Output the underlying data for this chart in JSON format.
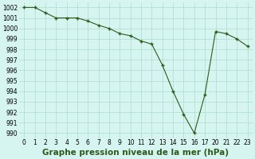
{
  "x_values": [
    0,
    1,
    2,
    3,
    4,
    5,
    6,
    7,
    8,
    9,
    10,
    11,
    12,
    13,
    14,
    15,
    16,
    17,
    20,
    21,
    22,
    23
  ],
  "y": [
    1002,
    1002,
    1001.5,
    1001,
    1001,
    1001,
    1000.7,
    1000.3,
    1000,
    999.5,
    999.3,
    998.8,
    998.5,
    996.5,
    994,
    991.8,
    990,
    993.7,
    999.7,
    999.5,
    999,
    998.3
  ],
  "line_color": "#2d5a1b",
  "marker_color": "#2d5a1b",
  "bg_color": "#d6f5f0",
  "grid_color": "#aaddcc",
  "title": "Graphe pression niveau de la mer (hPa)",
  "ylim_min": 989.5,
  "ylim_max": 1002.5,
  "yticks": [
    990,
    991,
    992,
    993,
    994,
    995,
    996,
    997,
    998,
    999,
    1000,
    1001,
    1002
  ],
  "tick_fontsize": 5.5,
  "title_fontsize": 7.5
}
